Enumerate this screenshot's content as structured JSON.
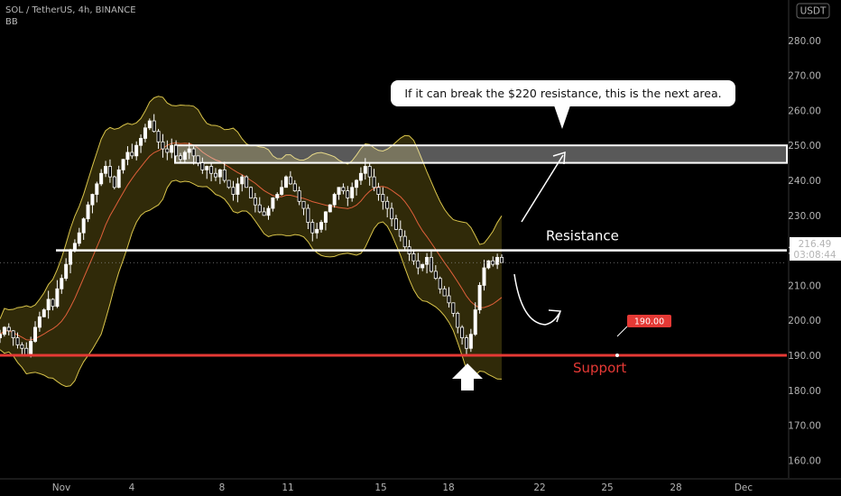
{
  "header": {
    "symbol_line": "SOL / TetherUS, 4h, BINANCE",
    "indicator": "BB"
  },
  "currency_badge": "USDT",
  "colors": {
    "background": "#000000",
    "candle_up": "#ffffff",
    "candle_down": "#ffffff",
    "bb_band": "#d9c44a",
    "bb_basis": "#e0603a",
    "bb_fill": "rgba(160,140,30,0.30)",
    "support": "#e53935",
    "resistance": "#ffffff",
    "price_label": "#ffffff"
  },
  "chart_data": {
    "type": "candlestick",
    "title": "SOL / TetherUS, 4h, BINANCE",
    "indicator": "BB",
    "y_axis": {
      "ticks": [
        160,
        170,
        180,
        190,
        200,
        210,
        220,
        230,
        240,
        250,
        260,
        270,
        280
      ],
      "ylim": [
        152,
        290
      ]
    },
    "x_axis": {
      "ticks": [
        "Nov",
        "4",
        "8",
        "11",
        "15",
        "18",
        "22",
        "25",
        "28",
        "Dec"
      ],
      "xlim": [
        0,
        31
      ]
    },
    "current_price": {
      "value": "216.49",
      "countdown": "03:08:44"
    },
    "levels": [
      {
        "name": "Resistance",
        "value": 220,
        "label": "220.00",
        "text": "Resistance"
      },
      {
        "name": "Support",
        "value": 190,
        "label": "190.00",
        "text": "Support"
      }
    ],
    "zone": {
      "from": 245,
      "to": 250
    },
    "annotation": "If it can break the $220 resistance, this is the next area.",
    "closes": [
      196,
      198,
      197,
      195,
      193,
      192,
      190,
      194,
      198,
      201,
      203,
      206,
      204,
      209,
      212,
      216,
      220,
      222,
      225,
      229,
      233,
      236,
      239,
      242,
      244,
      241,
      238,
      243,
      246,
      248,
      247,
      250,
      252,
      255,
      257,
      254,
      251,
      249,
      248,
      250,
      247,
      246,
      248,
      249,
      247,
      245,
      243,
      244,
      242,
      241,
      243,
      240,
      238,
      236,
      239,
      241,
      238,
      235,
      233,
      231,
      230,
      232,
      235,
      236,
      238,
      241,
      239,
      237,
      234,
      232,
      228,
      225,
      226,
      228,
      231,
      233,
      236,
      238,
      237,
      235,
      238,
      240,
      242,
      244,
      241,
      238,
      236,
      234,
      232,
      229,
      226,
      224,
      221,
      219,
      217,
      215,
      216,
      218,
      214,
      212,
      209,
      207,
      205,
      202,
      198,
      195,
      192,
      196,
      203,
      210,
      215,
      217,
      216,
      218,
      216.5
    ],
    "candle_x_range": [
      0,
      19.35
    ]
  }
}
